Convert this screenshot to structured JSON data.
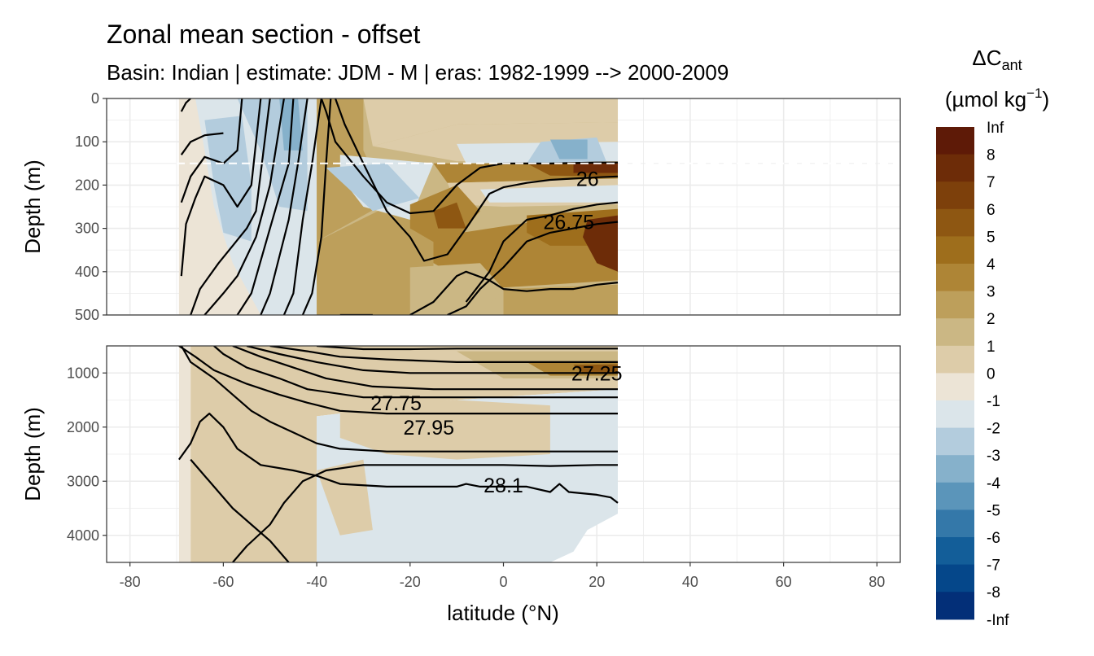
{
  "title": "Zonal mean section - offset",
  "subtitle": "Basin: Indian | estimate: JDM - M | eras: 1982-1999 --> 2000-2009",
  "chart_data": {
    "type": "heatmap",
    "xlabel": "latitude (°N)",
    "ylabel": "Depth (m)",
    "xlim": [
      -85,
      85
    ],
    "x_ticks": [
      "-80",
      "-60",
      "-40",
      "-20",
      "0",
      "20",
      "40",
      "60",
      "80"
    ],
    "panels": [
      {
        "name": "upper",
        "ylim": [
          0,
          500
        ],
        "y_ticks": [
          "0",
          "100",
          "200",
          "300",
          "400",
          "500"
        ],
        "reference_depth": 150,
        "contour_labels": [
          {
            "text": "26",
            "lat": 18,
            "depth": 185
          },
          {
            "text": "26.75",
            "lat": 14,
            "depth": 285
          }
        ]
      },
      {
        "name": "lower",
        "ylim": [
          500,
          4500
        ],
        "y_ticks": [
          "1000",
          "2000",
          "3000",
          "4000"
        ],
        "contour_labels": [
          {
            "text": "27.25",
            "lat": 20,
            "depth": 1000
          },
          {
            "text": "27.75",
            "lat": -23,
            "depth": 1550
          },
          {
            "text": "27.95",
            "lat": -16,
            "depth": 2000
          },
          {
            "text": "28.1",
            "lat": 0,
            "depth": 3070
          }
        ]
      }
    ],
    "legend": {
      "title_main": "ΔC",
      "title_sub": "ant",
      "title_units": "(µmol kg",
      "title_exp": "−1",
      "title_close": ")",
      "position": "right",
      "labels": [
        "Inf",
        "8",
        "7",
        "6",
        "5",
        "4",
        "3",
        "2",
        "1",
        "0",
        "-1",
        "-2",
        "-3",
        "-4",
        "-5",
        "-6",
        "-7",
        "-8",
        "-Inf"
      ],
      "colors": [
        "#5e1a07",
        "#6d2c08",
        "#7d400b",
        "#8e5712",
        "#9e6e1c",
        "#ae8536",
        "#bd9f5b",
        "#cbb784",
        "#ddcca9",
        "#ece4d6",
        "#dbe5ea",
        "#b3ccdd",
        "#86b1cb",
        "#5b95ba",
        "#3478a9",
        "#135e99",
        "#05478a",
        "#032f78",
        "#021a63"
      ]
    }
  }
}
